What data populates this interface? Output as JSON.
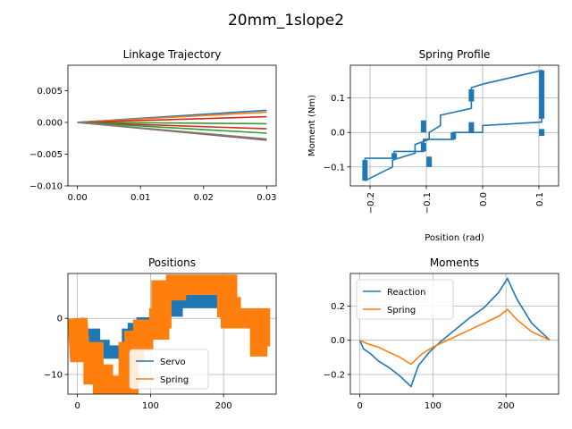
{
  "figure_title": "20mm_1slope2",
  "chart_data": [
    {
      "id": "linkage",
      "type": "line",
      "title": "Linkage Trajectory",
      "xlabel": "",
      "ylabel": "",
      "xlim": [
        -0.0015,
        0.0315
      ],
      "ylim": [
        -0.01,
        0.009
      ],
      "xticks": [
        0.0,
        0.01,
        0.02,
        0.03
      ],
      "xtick_labels": [
        "0.00",
        "0.01",
        "0.02",
        "0.03"
      ],
      "yticks": [
        -0.01,
        -0.005,
        0.0,
        0.005
      ],
      "ytick_labels": [
        "−0.010",
        "−0.005",
        "0.000",
        "0.005"
      ],
      "grid": false,
      "series": [
        {
          "color": "#1f77b4",
          "x": [
            0,
            0.03
          ],
          "y": [
            0,
            0.0019
          ]
        },
        {
          "color": "#ff7f0e",
          "x": [
            0,
            0.03
          ],
          "y": [
            0,
            0.0016
          ]
        },
        {
          "color": "#d62728",
          "x": [
            0,
            0.03
          ],
          "y": [
            0,
            0.0009
          ]
        },
        {
          "color": "#2ca02c",
          "x": [
            0,
            0.03
          ],
          "y": [
            0,
            -0.0002
          ]
        },
        {
          "color": "#d62728",
          "x": [
            0,
            0.03
          ],
          "y": [
            0,
            -0.001
          ]
        },
        {
          "color": "#2ca02c",
          "x": [
            0,
            0.03
          ],
          "y": [
            0,
            -0.0017
          ]
        },
        {
          "color": "#9467bd",
          "x": [
            0,
            0.03
          ],
          "y": [
            0,
            -0.0027
          ]
        },
        {
          "color": "#8c564b",
          "x": [
            0,
            0.03
          ],
          "y": [
            0,
            -0.0028
          ]
        },
        {
          "color": "#7f7f7f",
          "x": [
            0,
            0.03
          ],
          "y": [
            0,
            -0.0026
          ]
        }
      ]
    },
    {
      "id": "spring",
      "type": "line",
      "title": "Spring Profile",
      "xlabel": "Position (rad)",
      "ylabel": "Moment (Nm)",
      "xlim": [
        -0.235,
        0.135
      ],
      "ylim": [
        -0.155,
        0.195
      ],
      "xticks": [
        -0.2,
        -0.1,
        0.0,
        0.1
      ],
      "xtick_labels": [
        "−0.2",
        "−0.1",
        "0.0",
        "0.1"
      ],
      "xtick_rotation": 90,
      "yticks": [
        -0.1,
        0.0,
        0.1
      ],
      "ytick_labels": [
        "−0.1",
        "0.0",
        "0.1"
      ],
      "grid": true,
      "series": [
        {
          "color": "#1f77b4",
          "x": [
            -0.209,
            -0.209,
            -0.157,
            -0.157,
            -0.105,
            -0.105,
            -0.052,
            -0.052,
            0.0,
            0.0,
            0.105,
            0.105,
            0.0,
            -0.02,
            -0.02,
            -0.075,
            -0.075,
            -0.095,
            -0.095,
            -0.12,
            -0.12,
            -0.16,
            -0.16,
            -0.209
          ],
          "y": [
            -0.12,
            -0.075,
            -0.075,
            -0.055,
            -0.055,
            -0.02,
            -0.02,
            0.0,
            0.0,
            0.02,
            0.03,
            0.18,
            0.14,
            0.13,
            0.07,
            0.05,
            0.02,
            0.0,
            -0.02,
            -0.035,
            -0.06,
            -0.08,
            -0.1,
            -0.14
          ]
        }
      ],
      "bands": [
        {
          "x": -0.209,
          "y0": -0.14,
          "y1": -0.08
        },
        {
          "x": -0.157,
          "y0": -0.075,
          "y1": -0.06
        },
        {
          "x": -0.105,
          "y0": -0.055,
          "y1": -0.03
        },
        {
          "x": -0.095,
          "y0": -0.1,
          "y1": -0.07
        },
        {
          "x": -0.105,
          "y0": 0.0,
          "y1": 0.035
        },
        {
          "x": -0.052,
          "y0": -0.02,
          "y1": 0.0
        },
        {
          "x": -0.02,
          "y0": 0.0,
          "y1": 0.03
        },
        {
          "x": -0.02,
          "y0": 0.09,
          "y1": 0.125
        },
        {
          "x": 0.105,
          "y0": -0.01,
          "y1": 0.01
        },
        {
          "x": 0.105,
          "y0": 0.04,
          "y1": 0.18
        }
      ]
    },
    {
      "id": "positions",
      "type": "line",
      "title": "Positions",
      "xlabel": "",
      "ylabel": "",
      "xlim": [
        -13,
        272
      ],
      "ylim": [
        -13.5,
        8
      ],
      "xticks": [
        0,
        100,
        200
      ],
      "xtick_labels": [
        "0",
        "100",
        "200"
      ],
      "yticks": [
        -10,
        0
      ],
      "ytick_labels": [
        "−10",
        "0"
      ],
      "grid": true,
      "legend": {
        "position": "lower-center",
        "entries": [
          "Servo",
          "Spring"
        ]
      },
      "series": [
        {
          "name": "Servo",
          "color": "#1f77b4",
          "x": [
            0,
            3,
            3,
            22,
            22,
            35,
            35,
            70,
            70,
            78,
            78,
            90,
            90,
            112,
            112,
            115,
            115,
            135,
            135,
            205,
            205,
            210,
            210,
            250,
            250,
            260
          ],
          "y": [
            0,
            -3,
            -3,
            -3,
            -5,
            -5,
            -6,
            -6,
            -3,
            -3,
            -2,
            -2,
            -1,
            -1,
            0,
            0,
            1.5,
            1.5,
            3,
            3,
            1,
            1,
            0,
            0,
            -2,
            -2
          ],
          "band": 1.2
        },
        {
          "name": "Spring",
          "color": "#ff7f0e",
          "x": [
            0,
            3,
            3,
            22,
            22,
            35,
            35,
            70,
            70,
            78,
            78,
            90,
            90,
            112,
            112,
            115,
            115,
            135,
            135,
            205,
            205,
            210,
            210,
            250,
            250,
            260
          ],
          "y": [
            0,
            -6,
            -6,
            -6,
            -10,
            -10,
            -12,
            -12,
            -6,
            -6,
            -4,
            -4,
            -2,
            -2,
            0,
            0,
            5,
            5,
            6,
            6,
            2,
            2,
            0,
            0,
            -5,
            -5
          ],
          "band": 1.8
        }
      ]
    },
    {
      "id": "moments",
      "type": "line",
      "title": "Moments",
      "xlabel": "",
      "ylabel": "",
      "xlim": [
        -13,
        272
      ],
      "ylim": [
        -0.315,
        0.39
      ],
      "xticks": [
        0,
        100,
        200
      ],
      "xtick_labels": [
        "0",
        "100",
        "200"
      ],
      "yticks": [
        -0.2,
        0.0,
        0.2
      ],
      "ytick_labels": [
        "−0.2",
        "0.0",
        "0.2"
      ],
      "grid": true,
      "legend": {
        "position": "upper-left",
        "entries": [
          "Reaction",
          "Spring"
        ]
      },
      "series": [
        {
          "name": "Reaction",
          "color": "#1f77b4",
          "x": [
            0,
            5,
            15,
            25,
            40,
            55,
            70,
            80,
            95,
            110,
            130,
            150,
            170,
            190,
            202,
            215,
            235,
            260
          ],
          "y": [
            0,
            -0.05,
            -0.08,
            -0.12,
            -0.16,
            -0.21,
            -0.27,
            -0.15,
            -0.07,
            -0.01,
            0.06,
            0.13,
            0.19,
            0.28,
            0.36,
            0.24,
            0.1,
            0.0
          ]
        },
        {
          "name": "Spring",
          "color": "#ff7f0e",
          "x": [
            0,
            10,
            25,
            40,
            55,
            70,
            85,
            100,
            115,
            130,
            150,
            170,
            190,
            202,
            215,
            235,
            260
          ],
          "y": [
            0,
            -0.02,
            -0.04,
            -0.07,
            -0.1,
            -0.14,
            -0.08,
            -0.04,
            -0.01,
            0.02,
            0.06,
            0.1,
            0.14,
            0.18,
            0.12,
            0.05,
            0.0
          ]
        }
      ]
    }
  ]
}
